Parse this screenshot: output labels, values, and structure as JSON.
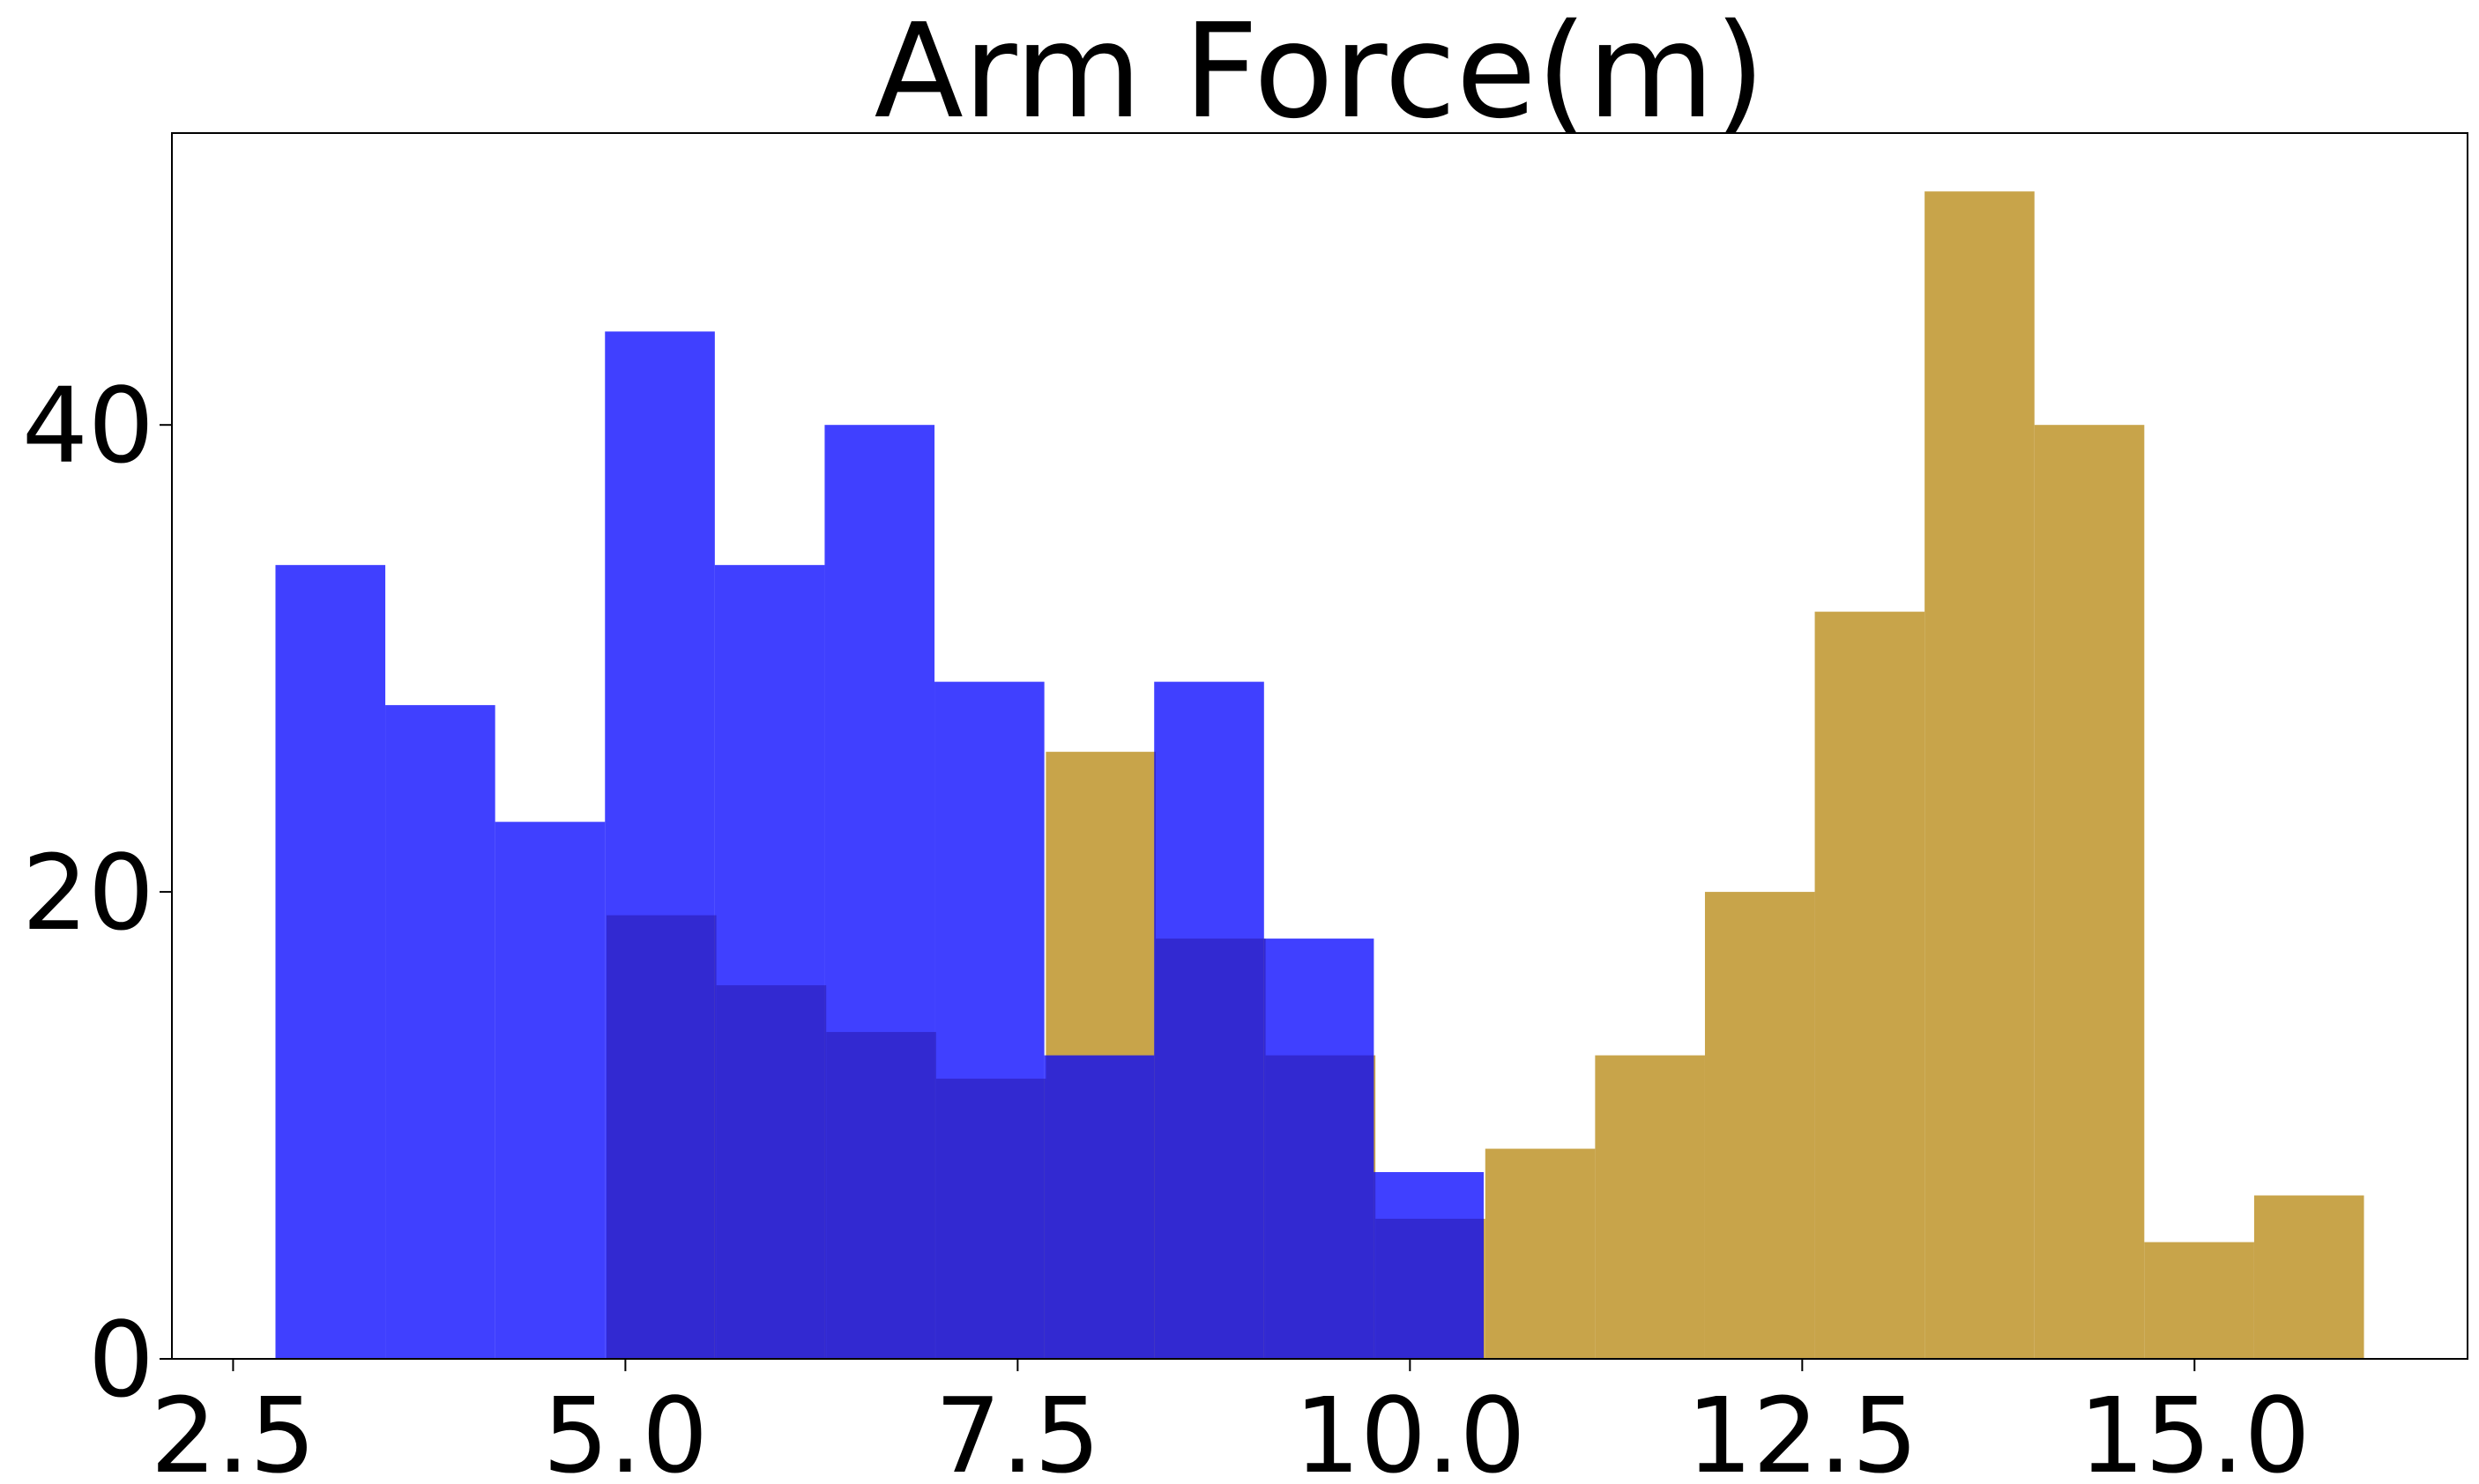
{
  "chart_data": {
    "type": "histogram",
    "title": "Arm Force(m)",
    "series": [
      {
        "color": "#c8a44a",
        "opacity": 1,
        "bins": [
          4.88,
          5.58,
          6.28,
          6.98,
          7.68,
          8.38,
          9.08,
          9.78,
          10.48,
          11.18,
          11.88,
          12.58,
          13.28,
          13.98,
          14.68,
          15.38,
          16.08
        ],
        "values": [
          19,
          16,
          14,
          12,
          26,
          18,
          13,
          6,
          9,
          13,
          20,
          32,
          50,
          40,
          5,
          7
        ]
      },
      {
        "color": "#0000ff",
        "opacity": 0.75,
        "bins": [
          2.77,
          3.47,
          4.17,
          4.87,
          5.57,
          6.27,
          6.97,
          7.67,
          8.37,
          9.07,
          9.77,
          10.47
        ],
        "values": [
          34,
          28,
          23,
          44,
          34,
          40,
          29,
          13,
          29,
          18,
          8
        ]
      }
    ],
    "xlim": [
      2.11,
      16.74
    ],
    "ylim": [
      0,
      52.5
    ],
    "xticks": [
      2.5,
      {
        "value": 5,
        "label": "5.0"
      },
      7.5,
      {
        "value": 10,
        "label": "10.0"
      },
      12.5,
      {
        "value": 15,
        "label": "15.0"
      }
    ],
    "yticks": [
      0,
      20,
      40
    ]
  }
}
